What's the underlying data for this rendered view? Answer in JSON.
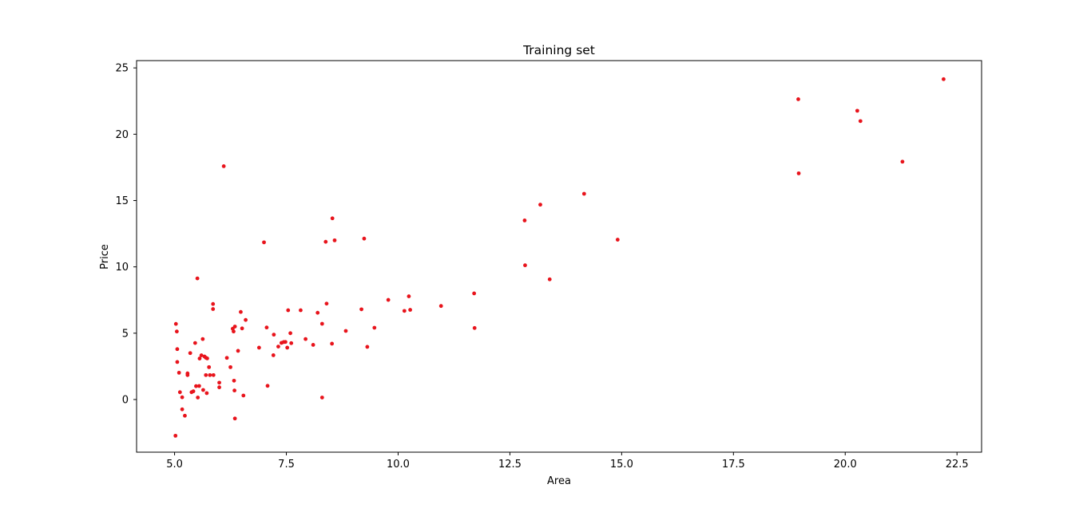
{
  "chart_data": {
    "type": "scatter",
    "title": "Training set",
    "xlabel": "Area",
    "ylabel": "Price",
    "xlim": [
      4.15,
      23.05
    ],
    "ylim": [
      -3.97,
      25.55
    ],
    "xticks": [
      5.0,
      7.5,
      10.0,
      12.5,
      15.0,
      17.5,
      20.0,
      22.5
    ],
    "xtick_labels": [
      "5.0",
      "7.5",
      "10.0",
      "12.5",
      "15.0",
      "17.5",
      "20.0",
      "22.5"
    ],
    "yticks": [
      0,
      5,
      10,
      15,
      20,
      25
    ],
    "ytick_labels": [
      "0",
      "5",
      "10",
      "15",
      "20",
      "25"
    ],
    "grid": false,
    "marker_color": "#e8141c",
    "series": [
      {
        "points": [
          [
            5.02,
            -2.73
          ],
          [
            5.03,
            5.7
          ],
          [
            5.05,
            5.13
          ],
          [
            5.06,
            3.8
          ],
          [
            5.06,
            2.83
          ],
          [
            5.1,
            2.02
          ],
          [
            5.12,
            0.55
          ],
          [
            5.17,
            0.17
          ],
          [
            5.17,
            -0.74
          ],
          [
            5.23,
            -1.22
          ],
          [
            5.29,
            1.97
          ],
          [
            5.29,
            1.84
          ],
          [
            5.35,
            3.5
          ],
          [
            5.38,
            0.55
          ],
          [
            5.42,
            0.62
          ],
          [
            5.46,
            4.26
          ],
          [
            5.48,
            1.01
          ],
          [
            5.51,
            9.13
          ],
          [
            5.52,
            0.15
          ],
          [
            5.55,
            1.02
          ],
          [
            5.56,
            3.09
          ],
          [
            5.6,
            3.33
          ],
          [
            5.63,
            4.56
          ],
          [
            5.64,
            0.72
          ],
          [
            5.67,
            3.24
          ],
          [
            5.7,
            3.15
          ],
          [
            5.7,
            1.84
          ],
          [
            5.72,
            0.48
          ],
          [
            5.73,
            3.1
          ],
          [
            5.77,
            2.44
          ],
          [
            5.79,
            1.84
          ],
          [
            5.86,
            7.2
          ],
          [
            5.86,
            6.82
          ],
          [
            5.87,
            1.84
          ],
          [
            6.0,
            1.27
          ],
          [
            6.0,
            0.92
          ],
          [
            6.1,
            17.59
          ],
          [
            6.17,
            3.14
          ],
          [
            6.25,
            2.44
          ],
          [
            6.3,
            5.34
          ],
          [
            6.32,
            5.13
          ],
          [
            6.33,
            1.42
          ],
          [
            6.34,
            0.68
          ],
          [
            6.35,
            5.5
          ],
          [
            6.35,
            -1.43
          ],
          [
            6.42,
            3.67
          ],
          [
            6.48,
            6.6
          ],
          [
            6.51,
            5.36
          ],
          [
            6.54,
            0.3
          ],
          [
            6.59,
            6.0
          ],
          [
            6.89,
            3.91
          ],
          [
            7.0,
            11.85
          ],
          [
            7.06,
            5.43
          ],
          [
            7.08,
            1.03
          ],
          [
            7.21,
            3.34
          ],
          [
            7.22,
            4.89
          ],
          [
            7.32,
            3.99
          ],
          [
            7.39,
            4.27
          ],
          [
            7.44,
            4.33
          ],
          [
            7.48,
            4.34
          ],
          [
            7.52,
            3.91
          ],
          [
            7.54,
            6.73
          ],
          [
            7.59,
            5.0
          ],
          [
            7.61,
            4.25
          ],
          [
            7.82,
            6.73
          ],
          [
            7.93,
            4.56
          ],
          [
            8.1,
            4.12
          ],
          [
            8.2,
            6.54
          ],
          [
            8.3,
            5.71
          ],
          [
            8.3,
            0.15
          ],
          [
            8.38,
            11.89
          ],
          [
            8.4,
            7.23
          ],
          [
            8.52,
            4.21
          ],
          [
            8.53,
            13.66
          ],
          [
            8.58,
            12.0
          ],
          [
            8.83,
            5.17
          ],
          [
            9.18,
            6.8
          ],
          [
            9.24,
            12.13
          ],
          [
            9.31,
            3.97
          ],
          [
            9.47,
            5.41
          ],
          [
            9.78,
            7.51
          ],
          [
            10.14,
            6.68
          ],
          [
            10.24,
            7.78
          ],
          [
            10.27,
            6.76
          ],
          [
            10.96,
            7.05
          ],
          [
            11.7,
            8.0
          ],
          [
            11.71,
            5.39
          ],
          [
            12.83,
            13.5
          ],
          [
            12.84,
            10.12
          ],
          [
            13.18,
            14.69
          ],
          [
            13.39,
            9.06
          ],
          [
            14.16,
            15.51
          ],
          [
            14.91,
            12.05
          ],
          [
            18.95,
            22.64
          ],
          [
            18.96,
            17.05
          ],
          [
            20.27,
            21.77
          ],
          [
            20.34,
            20.99
          ],
          [
            21.28,
            17.93
          ],
          [
            22.2,
            24.15
          ]
        ]
      }
    ]
  }
}
